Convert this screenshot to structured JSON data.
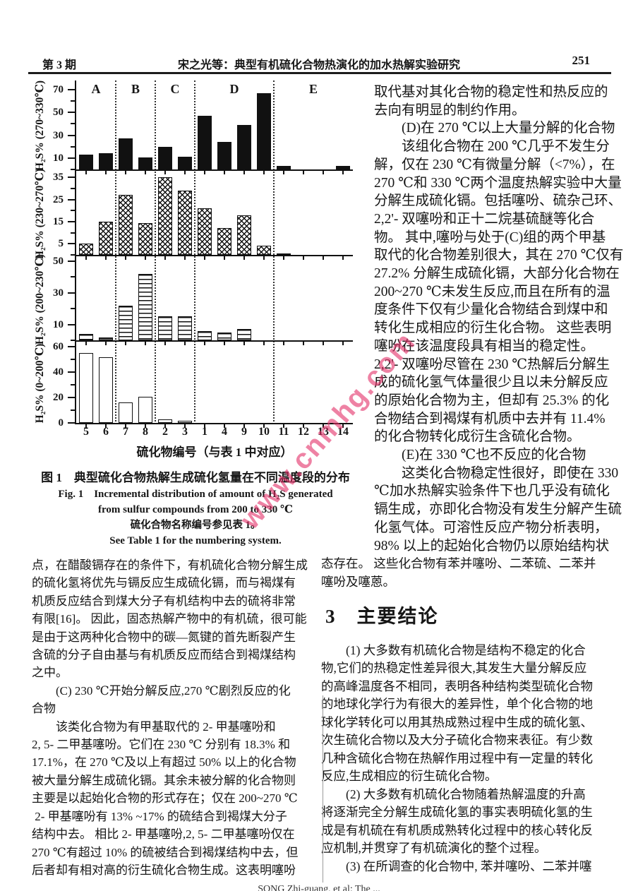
{
  "header": {
    "issue": "第 3 期",
    "title": "宋之光等：典型有机硫化合物热演化的加水热解实验研究",
    "page_number": "251"
  },
  "watermark": {
    "text": "www.cnmhg.com",
    "color": "#e22e68"
  },
  "figure": {
    "caption_cn": "图 1　典型硫化合物热解生成硫化氢量在不同温度段的分布",
    "caption_en_line1": "Fig. 1　Incremental distribution of amount of H₂S generated",
    "caption_en_line2": "from sulfur compounds from 200 to 330 ℃",
    "caption_note_cn": "硫化合物名称编号参见表 1。",
    "caption_note_en": "See Table 1 for the numbering system."
  },
  "chart_data": {
    "type": "bar",
    "title": "典型硫化合物热解生成硫化氢量在不同温度段的分布",
    "categories": [
      "5",
      "6",
      "7",
      "8",
      "2",
      "3",
      "1",
      "4",
      "9",
      "10",
      "11",
      "12",
      "13",
      "14"
    ],
    "xlabel": "硫化物编号（与表 1 中对应）",
    "zone_labels": [
      "A",
      "B",
      "C",
      "D",
      "E"
    ],
    "zone_boundaries_after_index": [
      1,
      3,
      5,
      9
    ],
    "grid": false,
    "panels": [
      {
        "ylabel": "H₂S% (270~330℃)",
        "yticks": [
          10,
          30,
          50,
          70
        ],
        "ylim": [
          0,
          78
        ],
        "fill": "solid",
        "values": [
          13,
          14,
          27,
          10.5,
          20,
          11,
          47,
          24,
          39,
          67,
          3,
          0,
          0,
          3
        ]
      },
      {
        "ylabel": "H₂S% (230~270℃)",
        "yticks": [
          5,
          15,
          25,
          35
        ],
        "ylim": [
          0,
          38
        ],
        "fill": "crosshatch",
        "values": [
          5,
          15,
          27,
          14.5,
          35,
          29,
          21,
          12,
          18,
          4,
          0.5,
          0,
          0,
          0
        ]
      },
      {
        "ylabel": "H₂S% (200~230℃)",
        "yticks": [
          10,
          30,
          50
        ],
        "ylim": [
          0,
          53
        ],
        "fill": "hlines",
        "values": [
          4,
          2,
          22,
          42,
          15,
          15,
          6,
          5,
          7,
          0,
          0,
          0,
          0,
          0
        ]
      },
      {
        "ylabel": "H₂S% (0~200℃)",
        "yticks": [
          0,
          20,
          40,
          60
        ],
        "ylim": [
          0,
          64
        ],
        "fill": "open",
        "values": [
          55,
          52,
          16,
          20.5,
          3,
          1.5,
          0,
          0,
          0,
          0,
          0,
          0,
          0,
          0
        ]
      }
    ]
  },
  "left_column": {
    "lines": [
      "点，在醋酸镉存在的条件下，有机硫化合物分解生成",
      "的硫化氢将优先与镉反应生成硫化镉，而与褐煤有",
      "机质反应结合到煤大分子有机结构中去的硫将非常",
      "有限[16]。 因此，固态热解产物中的有机硫，很可能",
      "是由于这两种化合物中的碳—氮键的首先断裂产生",
      "含硫的分子自由基与有机质反应而结合到褐煤结构",
      "之中。",
      "　　(C) 230 ℃开始分解反应,270 ℃剧烈反应的化",
      "合物",
      "　　该类化合物为有甲基取代的 2- 甲基噻吩和",
      "2, 5- 二甲基噻吩。它们在 230 ℃ 分别有 18.3% 和",
      "17.1%，在 270 ℃及以上有超过 50% 以上的化合物",
      "被大量分解生成硫化镉。其余未被分解的化合物则",
      "主要是以起始化合物的形式存在；仅在 200~270 ℃",
      " 2- 甲基噻吩有 13% ~17% 的硫结合到褐煤大分子",
      "结构中去。 相比 2- 甲基噻吩,2, 5- 二甲基噻吩仅在",
      "270 ℃有超过 10% 的硫被结合到褐煤结构中去，但",
      "后者却有相对高的衍生硫化合物生成。这表明噻吩"
    ]
  },
  "right_column_top": {
    "lines": [
      "取代基对其化合物的稳定性和热反应的",
      "去向有明显的制约作用。",
      "　　(D)在 270 ℃以上大量分解的化合物",
      "　　该组化合物在 200 ℃几乎不发生分",
      "解，仅在 230 ℃有微量分解（<7%），在",
      "270 ℃和 330 ℃两个温度热解实验中大量",
      "分解生成硫化镉。包括噻吩、硫杂己环、",
      "2,2'- 双噻吩和正十二烷基硫醚等化合",
      "物。 其中,噻吩与处于(C)组的两个甲基",
      "取代的化合物差别很大，其在 270 ℃仅有",
      "27.2% 分解生成硫化镉，大部分化合物在",
      "200~270 ℃未发生反应,而且在所有的温",
      "度条件下仅有少量化合物结合到煤中和",
      "转化生成相应的衍生化合物。 这些表明",
      "噻吩在该温度段具有相当的稳定性。",
      "2,2'- 双噻吩尽管在 230 ℃热解后分解生",
      "成的硫化氢气体量很少且以未分解反应",
      "的原始化合物为主，但却有 25.3% 的化",
      "合物结合到褐煤有机质中去并有 11.4%",
      "的化合物转化成衍生含硫化合物。",
      "　　(E)在 330 ℃也不反应的化合物",
      "　　这类化合物稳定性很好，即使在 330",
      "℃加水热解实验条件下也几乎没有硫化",
      "镉生成，亦即化合物没有发生分解产生硫",
      "化氢气体。可溶性反应产物分析表明，",
      "98% 以上的起始化合物仍以原始结构状"
    ]
  },
  "right_column_bottom": {
    "intro_lines": [
      "态存在。 这些化合物有苯并噻吩、二苯硫、二苯并",
      "噻吩及噻蒽。"
    ],
    "heading": "3　主要结论",
    "lines": [
      "　　(1) 大多数有机硫化合物是结构不稳定的化合",
      "物,它们的热稳定性差异很大,其发生大量分解反应",
      "的高峰温度各不相同，表明各种结构类型硫化合物",
      "的地球化学行为有很大的差异性，单个化合物的地",
      "球化学转化可以用其热成熟过程中生成的硫化氢、",
      "次生硫化合物以及大分子硫化合物来表征。有少数",
      "几种含硫化合物在热解作用过程中有一定量的转化",
      "反应,生成相应的衍生硫化合物。",
      "　　(2) 大多数有机硫化合物随着热解温度的升高",
      "将逐渐完全分解生成硫化氢的事实表明硫化氢的生",
      "成是有机硫在有机质成熟转化过程中的核心转化反",
      "应机制,并贯穿了有机硫演化的整个过程。",
      "　　(3) 在所调查的化合物中, 苯并噻吩、二苯并噻"
    ]
  },
  "footer": {
    "text": "SONG Zhi-guang, et al: The ..."
  }
}
